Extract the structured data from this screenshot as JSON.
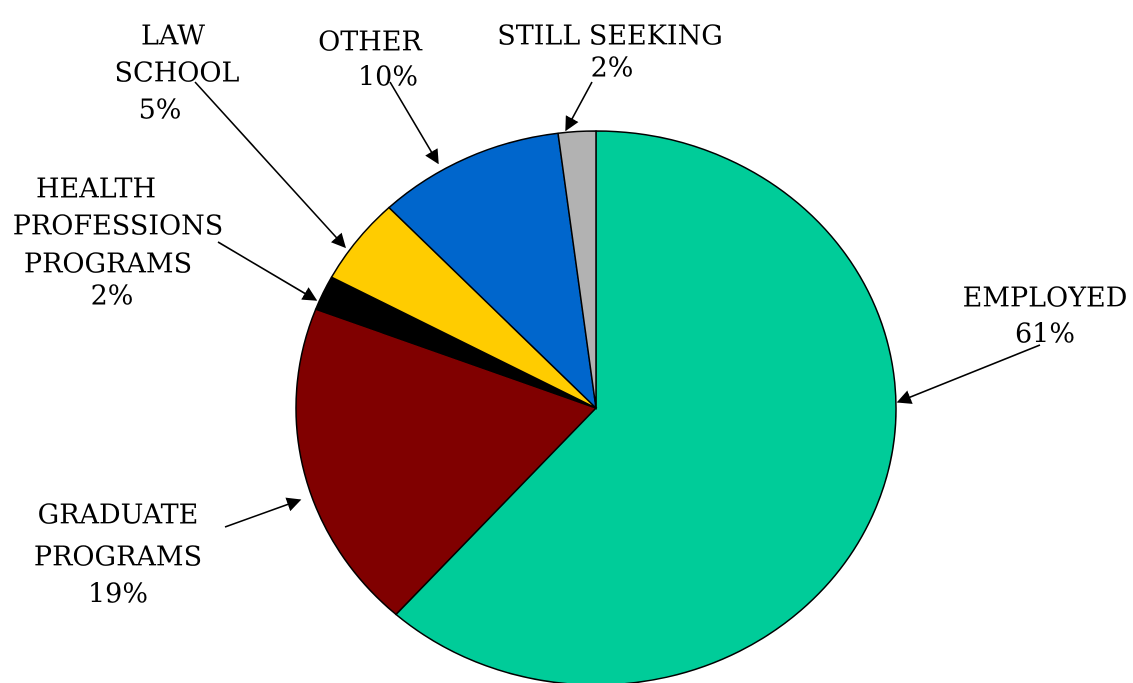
{
  "chart_data": {
    "type": "pie",
    "slices": [
      {
        "label": "EMPLOYED",
        "value": 61,
        "value_label": "61%",
        "color": "#00CC99",
        "label_lines": [
          "EMPLOYED"
        ]
      },
      {
        "label": "GRADUATE PROGRAMS",
        "value": 19,
        "value_label": "19%",
        "color": "#800000",
        "label_lines": [
          "GRADUATE",
          "PROGRAMS"
        ]
      },
      {
        "label": "HEALTH PROFESSIONS PROGRAMS",
        "value": 2,
        "value_label": "2%",
        "color": "#000000",
        "label_lines": [
          "HEALTH",
          "PROFESSIONS",
          "PROGRAMS"
        ]
      },
      {
        "label": "LAW SCHOOL",
        "value": 5,
        "value_label": "5%",
        "color": "#FFCC00",
        "label_lines": [
          "LAW",
          "SCHOOL"
        ]
      },
      {
        "label": "OTHER",
        "value": 10,
        "value_label": "10%",
        "color": "#0066CC",
        "label_lines": [
          "OTHER"
        ]
      },
      {
        "label": "STILL SEEKING",
        "value": 2,
        "value_label": "2%",
        "color": "#B2B2B2",
        "label_lines": [
          "STILL SEEKING"
        ]
      }
    ],
    "start_angle": "12 o'clock",
    "direction": "clockwise",
    "legend": "none",
    "title": ""
  }
}
